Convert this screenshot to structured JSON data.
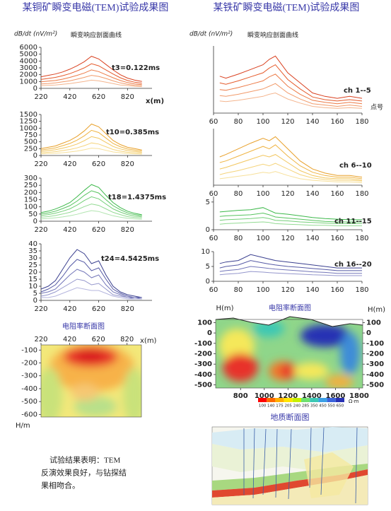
{
  "titles": [
    "某铜矿瞬变电磁(TEM)试验成果图",
    "某铁矿瞬变电磁(TEM)试验成果图"
  ],
  "note": [
    "试验结果表明：TEM",
    "反演效果良好，与钻探结",
    "果相吻合。"
  ],
  "chart_data": [
    {
      "type": "line",
      "subtitle": "瞬变响应剖面曲线",
      "ylabel": "dB/dt (nV/m²)",
      "xlabel": "x(m)",
      "annotation": "t3=0.122ms",
      "x": [
        220,
        270,
        320,
        370,
        420,
        470,
        520,
        570,
        620,
        670,
        720,
        770,
        820,
        870,
        920
      ],
      "xlim": [
        220,
        990
      ],
      "xticks": [
        220,
        420,
        620,
        820
      ],
      "ylim": [
        0,
        6000
      ],
      "yticks": [
        0,
        1000,
        2000,
        3000,
        4000,
        5000,
        6000
      ],
      "series": [
        {
          "color": "#d9401f",
          "values": [
            1700,
            1900,
            2100,
            2400,
            2800,
            3300,
            3900,
            4700,
            4300,
            3500,
            2700,
            2000,
            1500,
            1200,
            1000
          ]
        },
        {
          "color": "#e55a2b",
          "values": [
            1300,
            1450,
            1600,
            1850,
            2150,
            2550,
            3000,
            3600,
            3300,
            2700,
            2100,
            1550,
            1150,
            900,
            750
          ]
        },
        {
          "color": "#ec7a46",
          "values": [
            950,
            1050,
            1150,
            1350,
            1600,
            1900,
            2250,
            2700,
            2450,
            2000,
            1550,
            1150,
            850,
            650,
            550
          ]
        },
        {
          "color": "#f19a6a",
          "values": [
            650,
            700,
            800,
            950,
            1100,
            1350,
            1600,
            1900,
            1750,
            1450,
            1100,
            800,
            600,
            450,
            400
          ]
        },
        {
          "color": "#f4b58e",
          "values": [
            400,
            450,
            500,
            600,
            700,
            850,
            1000,
            1200,
            1100,
            900,
            700,
            500,
            400,
            300,
            250
          ]
        }
      ]
    },
    {
      "type": "line",
      "annotation": "t10=0.385ms",
      "x": [
        220,
        270,
        320,
        370,
        420,
        470,
        520,
        570,
        620,
        670,
        720,
        770,
        820,
        870,
        920
      ],
      "xlim": [
        220,
        990
      ],
      "xticks": [
        220,
        420,
        620,
        820
      ],
      "ylim": [
        0,
        1500
      ],
      "yticks": [
        0,
        250,
        500,
        750,
        1000,
        1250,
        1500
      ],
      "series": [
        {
          "color": "#e8a02a",
          "values": [
            250,
            300,
            350,
            450,
            550,
            700,
            900,
            1150,
            1050,
            800,
            550,
            400,
            300,
            250,
            200
          ]
        },
        {
          "color": "#efb443",
          "values": [
            200,
            240,
            280,
            360,
            440,
            560,
            720,
            920,
            840,
            640,
            440,
            320,
            240,
            200,
            160
          ]
        },
        {
          "color": "#f2c65e",
          "values": [
            150,
            180,
            210,
            270,
            330,
            420,
            540,
            690,
            630,
            480,
            330,
            240,
            180,
            150,
            120
          ]
        },
        {
          "color": "#f5d47c",
          "values": [
            100,
            120,
            140,
            180,
            220,
            280,
            360,
            460,
            420,
            320,
            220,
            160,
            120,
            100,
            80
          ]
        },
        {
          "color": "#f7e09a",
          "values": [
            60,
            70,
            80,
            100,
            130,
            160,
            210,
            270,
            250,
            190,
            130,
            100,
            70,
            60,
            50
          ]
        }
      ]
    },
    {
      "type": "line",
      "annotation": "t18=1.4375ms",
      "x": [
        220,
        270,
        320,
        370,
        420,
        470,
        520,
        570,
        620,
        670,
        720,
        770,
        820,
        870,
        920
      ],
      "xlim": [
        220,
        990
      ],
      "xticks": [
        220,
        420,
        620,
        820
      ],
      "ylim": [
        0,
        300
      ],
      "yticks": [
        0,
        50,
        100,
        150,
        200,
        250,
        300
      ],
      "series": [
        {
          "color": "#3cb84a",
          "values": [
            60,
            70,
            85,
            105,
            130,
            170,
            215,
            255,
            235,
            180,
            130,
            95,
            70,
            55,
            45
          ]
        },
        {
          "color": "#56c35e",
          "values": [
            50,
            58,
            70,
            88,
            108,
            140,
            180,
            212,
            196,
            150,
            108,
            80,
            58,
            46,
            38
          ]
        },
        {
          "color": "#74cf78",
          "values": [
            40,
            46,
            56,
            70,
            86,
            112,
            144,
            170,
            156,
            120,
            86,
            64,
            46,
            36,
            30
          ]
        },
        {
          "color": "#93da93",
          "values": [
            28,
            32,
            40,
            50,
            62,
            80,
            102,
            120,
            110,
            86,
            62,
            46,
            32,
            26,
            22
          ]
        },
        {
          "color": "#b2e5b0",
          "values": [
            16,
            19,
            24,
            30,
            38,
            48,
            62,
            74,
            68,
            52,
            38,
            28,
            20,
            16,
            13
          ]
        }
      ]
    },
    {
      "type": "line",
      "annotation": "t24=4.5425ms",
      "x": [
        220,
        270,
        320,
        370,
        420,
        470,
        520,
        570,
        620,
        670,
        720,
        770,
        820,
        870,
        920
      ],
      "xlim": [
        220,
        990
      ],
      "xticks": [
        220,
        420,
        620,
        820
      ],
      "ylim": [
        0,
        40
      ],
      "yticks": [
        0,
        5,
        10,
        15,
        20,
        25,
        30,
        35,
        40
      ],
      "series": [
        {
          "color": "#3a3f8f",
          "values": [
            8,
            10,
            14,
            22,
            30,
            36,
            33,
            26,
            28,
            18,
            10,
            6,
            4,
            3,
            2
          ]
        },
        {
          "color": "#5559a5",
          "values": [
            6,
            8,
            11,
            17,
            24,
            29,
            27,
            21,
            23,
            15,
            8,
            5,
            3,
            2,
            2
          ]
        },
        {
          "color": "#7376b9",
          "values": [
            5,
            6,
            8,
            13,
            18,
            22,
            20,
            16,
            18,
            11,
            6,
            4,
            2,
            2,
            1
          ]
        },
        {
          "color": "#9496cc",
          "values": [
            3,
            4,
            6,
            9,
            12,
            15,
            14,
            11,
            12,
            8,
            4,
            3,
            2,
            1,
            1
          ]
        },
        {
          "color": "#b5b6de",
          "values": [
            2,
            2,
            3,
            5,
            7,
            9,
            8,
            7,
            7,
            5,
            3,
            2,
            1,
            1,
            1
          ]
        }
      ]
    },
    {
      "type": "section",
      "title": "电阻率断面图",
      "xlabel": "x(m)",
      "ylabel": "H/m",
      "xlim": [
        220,
        920
      ],
      "xticks": [
        220,
        420,
        620,
        820
      ],
      "ylim": [
        -60,
        -620
      ],
      "yticks": [
        -100,
        -200,
        -300,
        -400,
        -500,
        -600
      ]
    },
    {
      "type": "line",
      "subtitle": "瞬变响应剖面曲线",
      "ylabel": "dB/dt (nV/m²)",
      "xlabel": "点号",
      "annotation": "ch 1--5",
      "x": [
        65,
        70,
        80,
        90,
        100,
        105,
        110,
        120,
        130,
        140,
        150,
        160,
        170,
        180
      ],
      "xlim": [
        60,
        180
      ],
      "xticks": [
        60,
        80,
        100,
        120,
        140,
        160,
        180
      ],
      "ylim": [
        0,
        100
      ],
      "series": [
        {
          "color": "#d9401f",
          "values": [
            55,
            52,
            58,
            65,
            72,
            80,
            85,
            60,
            45,
            30,
            25,
            22,
            25,
            22
          ]
        },
        {
          "color": "#e55a2b",
          "values": [
            45,
            43,
            48,
            54,
            60,
            67,
            72,
            50,
            36,
            24,
            20,
            18,
            20,
            18
          ]
        },
        {
          "color": "#ec7a46",
          "values": [
            35,
            34,
            38,
            43,
            48,
            54,
            58,
            40,
            28,
            19,
            16,
            14,
            16,
            14
          ]
        },
        {
          "color": "#f19a6a",
          "values": [
            26,
            25,
            28,
            32,
            36,
            40,
            44,
            30,
            21,
            14,
            12,
            10,
            12,
            10
          ]
        },
        {
          "color": "#f4b58e",
          "values": [
            18,
            17,
            19,
            22,
            25,
            28,
            30,
            21,
            15,
            10,
            8,
            7,
            8,
            7
          ]
        }
      ]
    },
    {
      "type": "line",
      "annotation": "ch 6--10",
      "x": [
        65,
        70,
        80,
        90,
        100,
        105,
        110,
        120,
        130,
        140,
        150,
        160,
        170,
        180
      ],
      "xlim": [
        60,
        180
      ],
      "xticks": [
        60,
        80,
        100,
        120,
        140,
        160,
        180
      ],
      "ylim": [
        0,
        70
      ],
      "series": [
        {
          "color": "#e8a02a",
          "values": [
            35,
            38,
            45,
            52,
            58,
            55,
            60,
            45,
            30,
            20,
            15,
            12,
            12,
            10
          ]
        },
        {
          "color": "#efb443",
          "values": [
            28,
            30,
            36,
            42,
            48,
            45,
            50,
            36,
            24,
            16,
            12,
            10,
            10,
            8
          ]
        },
        {
          "color": "#f2c65e",
          "values": [
            20,
            22,
            27,
            32,
            37,
            35,
            38,
            28,
            18,
            12,
            9,
            8,
            8,
            6
          ]
        },
        {
          "color": "#f5d47c",
          "values": [
            13,
            15,
            18,
            22,
            26,
            24,
            27,
            20,
            13,
            9,
            7,
            6,
            6,
            5
          ]
        },
        {
          "color": "#f7e09a",
          "values": [
            8,
            9,
            11,
            13,
            16,
            15,
            17,
            12,
            8,
            6,
            5,
            4,
            4,
            3
          ]
        }
      ]
    },
    {
      "type": "line",
      "annotation": "ch 11--15",
      "x": [
        65,
        70,
        80,
        90,
        100,
        105,
        110,
        120,
        130,
        140,
        150,
        160,
        170,
        180
      ],
      "xlim": [
        60,
        180
      ],
      "xticks": [
        60,
        80,
        100,
        120,
        140,
        160,
        180
      ],
      "ylim": [
        0,
        6
      ],
      "yticks": [
        0,
        5
      ],
      "series": [
        {
          "color": "#3cb84a",
          "values": [
            3.2,
            3.3,
            3.5,
            3.6,
            4.0,
            3.5,
            3.0,
            2.8,
            2.5,
            2.2,
            2.0,
            1.9,
            1.8,
            1.8
          ]
        },
        {
          "color": "#56c35e",
          "values": [
            2.4,
            2.5,
            2.6,
            2.7,
            3.0,
            2.7,
            2.3,
            2.1,
            1.9,
            1.7,
            1.5,
            1.4,
            1.4,
            1.4
          ]
        },
        {
          "color": "#74cf78",
          "values": [
            1.7,
            1.8,
            1.9,
            2.0,
            2.2,
            2.0,
            1.7,
            1.6,
            1.4,
            1.3,
            1.2,
            1.1,
            1.1,
            1.1
          ]
        },
        {
          "color": "#93da93",
          "values": [
            1.0,
            1.1,
            1.2,
            1.3,
            1.4,
            1.3,
            1.1,
            1.0,
            0.9,
            0.8,
            0.8,
            0.7,
            0.7,
            0.7
          ]
        }
      ]
    },
    {
      "type": "line",
      "annotation": "ch 16--20",
      "x": [
        65,
        70,
        80,
        90,
        100,
        105,
        110,
        120,
        130,
        140,
        150,
        160,
        170,
        180
      ],
      "xlim": [
        60,
        180
      ],
      "xticks": [
        60,
        80,
        100,
        120,
        140,
        160,
        180
      ],
      "ylim": [
        0,
        10
      ],
      "yticks": [
        0,
        5,
        10
      ],
      "series": [
        {
          "color": "#3a3f8f",
          "values": [
            6,
            6.5,
            7,
            9,
            8,
            7.5,
            7,
            6.5,
            6,
            5.5,
            5,
            4.5,
            4.5,
            4.5
          ]
        },
        {
          "color": "#5559a5",
          "values": [
            4.5,
            5,
            5.5,
            7,
            6.2,
            5.8,
            5.5,
            5,
            4.7,
            4.3,
            4,
            3.6,
            3.6,
            3.6
          ]
        },
        {
          "color": "#7376b9",
          "values": [
            3.3,
            3.6,
            4,
            5,
            4.6,
            4.3,
            4.1,
            3.8,
            3.5,
            3.2,
            3,
            2.7,
            2.7,
            2.7
          ]
        },
        {
          "color": "#9496cc",
          "values": [
            2.2,
            2.4,
            2.7,
            3.3,
            3.1,
            2.9,
            2.8,
            2.6,
            2.4,
            2.2,
            2.1,
            1.9,
            1.9,
            1.9
          ]
        }
      ]
    },
    {
      "type": "section",
      "title": "电阻率断面图",
      "ylabel": "H(m)",
      "xlim": [
        590,
        1830
      ],
      "xticks": [
        800,
        1000,
        1200,
        1400,
        1600,
        1800
      ],
      "ylim": [
        130,
        -530
      ],
      "yticks": [
        100,
        0,
        -100,
        -200,
        -300,
        -400,
        -500
      ],
      "colorbar_ticks": [
        100,
        140,
        175,
        205,
        240,
        285,
        350,
        450,
        550,
        650
      ],
      "colorbar_unit": "Ω·m",
      "colorbar_colors": [
        "#ff0000",
        "#ff6a00",
        "#ffb000",
        "#ffe600",
        "#c8f000",
        "#6ee06e",
        "#3cc8b4",
        "#3ca0e6",
        "#3c64dc",
        "#2832b4"
      ]
    },
    {
      "type": "geologic-section",
      "title": "地质断面图"
    }
  ]
}
